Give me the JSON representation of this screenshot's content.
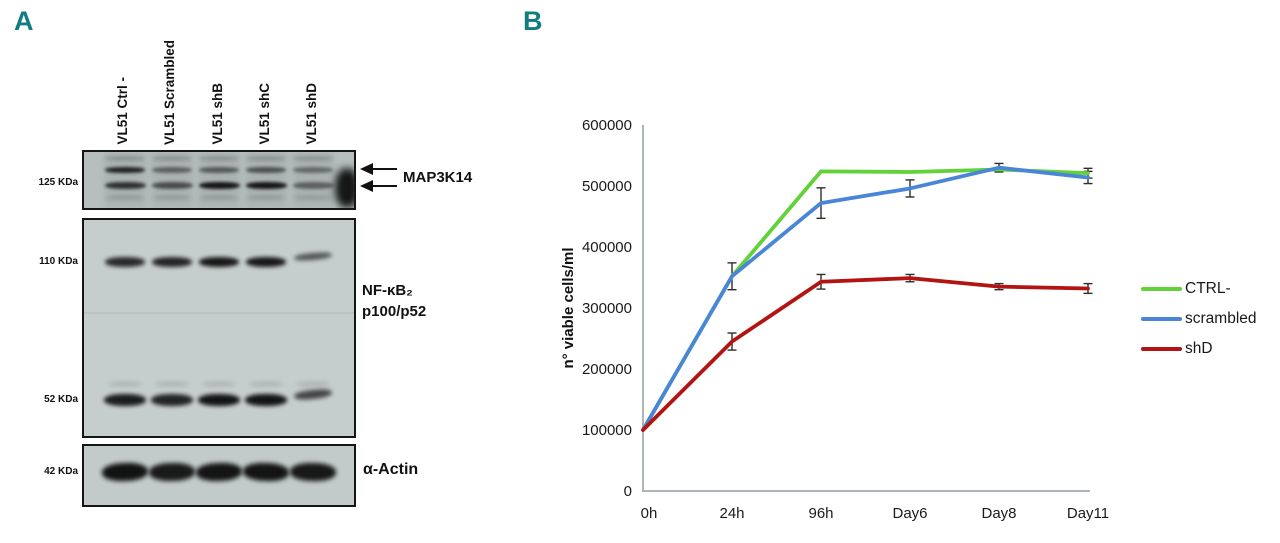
{
  "accent_color": "#137c7e",
  "panel_a": {
    "label": "A",
    "lanes": [
      "VL51 Ctrl -",
      "VL51 Scrambled",
      "VL51 shB",
      "VL51 shC",
      "VL51 shD"
    ],
    "markers": [
      "125 KDa",
      "110 KDa",
      "52 KDa",
      "42 KDa"
    ],
    "protein_labels": {
      "map3k14": "MAP3K14",
      "nfkb_line1": "NF-κB₂",
      "nfkb_line2": "p100/p52",
      "actin": "α-Actin"
    },
    "band_intensities": {
      "map3k14_upper": [
        0.88,
        0.5,
        0.55,
        0.6,
        0.45
      ],
      "map3k14_lower": [
        0.78,
        0.62,
        0.95,
        0.95,
        0.5
      ],
      "p100": [
        0.85,
        0.88,
        0.95,
        0.95,
        0.62
      ],
      "p52": [
        0.92,
        0.88,
        0.96,
        0.96,
        0.7
      ],
      "actin": [
        0.97,
        0.93,
        0.96,
        0.96,
        0.94
      ]
    }
  },
  "panel_b": {
    "label": "B"
  },
  "chart_data": {
    "type": "line",
    "title": "",
    "xlabel": "",
    "ylabel": "n° viable cells/ml",
    "categories": [
      "0h",
      "24h",
      "96h",
      "Day6",
      "Day8",
      "Day11"
    ],
    "ylim": [
      0,
      600000
    ],
    "ytick_step": 100000,
    "grid": false,
    "legend_position": "right",
    "axis_color": "#aeb4b8",
    "errorbar_color": "#2e2e2e",
    "series": [
      {
        "name": "CTRL-",
        "color": "#62d23a",
        "values": [
          100000,
          352000,
          524000,
          523000,
          527000,
          521000
        ],
        "errors": [
          0,
          22000,
          0,
          0,
          0,
          8000
        ]
      },
      {
        "name": "scrambled",
        "color": "#4a86d8",
        "values": [
          100000,
          352000,
          472000,
          496000,
          530000,
          514000
        ],
        "errors": [
          0,
          0,
          25000,
          14000,
          7000,
          10000
        ]
      },
      {
        "name": "shD",
        "color": "#b31312",
        "values": [
          100000,
          245000,
          343000,
          349000,
          335000,
          332000
        ],
        "errors": [
          0,
          14000,
          12000,
          6000,
          5000,
          8000
        ]
      }
    ]
  }
}
